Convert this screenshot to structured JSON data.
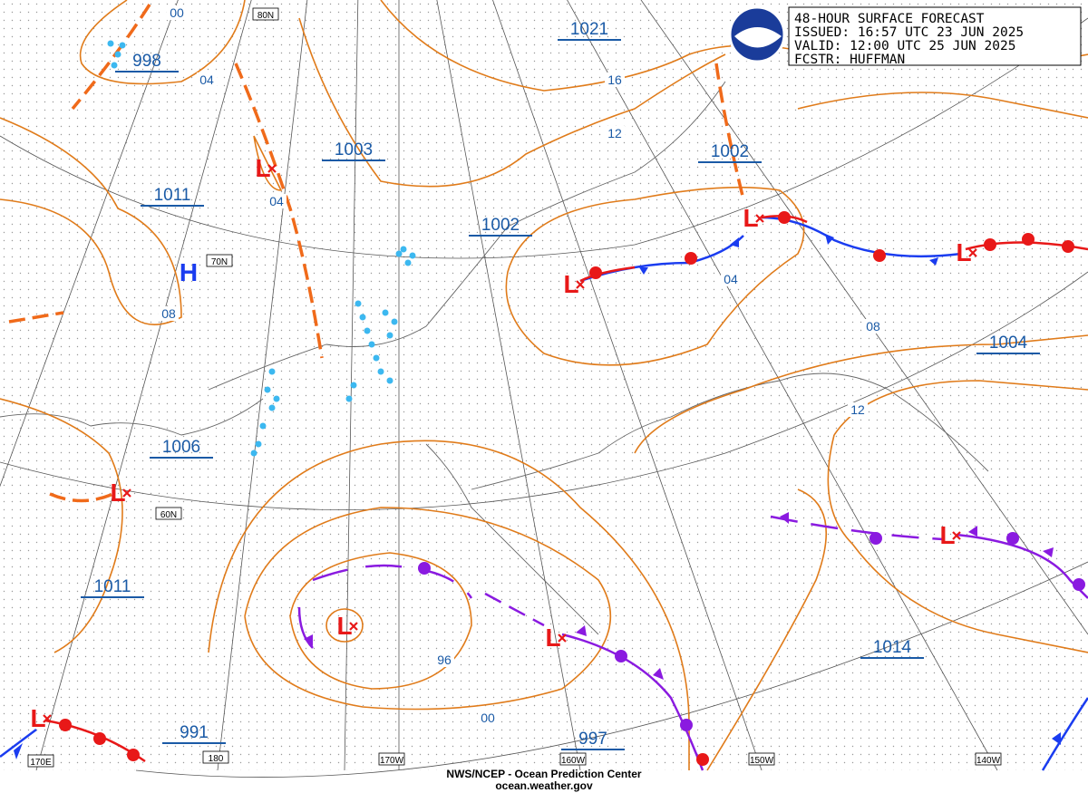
{
  "header": {
    "lines": [
      "48-HOUR SURFACE FORECAST",
      "ISSUED: 16:57 UTC 23 JUN 2025",
      "VALID:  12:00 UTC 25 JUN 2025",
      "FCSTR: HUFFMAN"
    ]
  },
  "footer": {
    "agency": "NWS/NCEP - Ocean Prediction Center",
    "website": "ocean.weather.gov"
  },
  "grid_labels": [
    "80N",
    "70N",
    "60N",
    "170E",
    "180",
    "170W",
    "160W",
    "150W",
    "140W"
  ],
  "pressure_labels": [
    "998",
    "1021",
    "1003",
    "1011",
    "1002",
    "1002",
    "1004",
    "1006",
    "1011",
    "991",
    "997",
    "1014"
  ],
  "isobar_labels": [
    "00",
    "04",
    "16",
    "12",
    "04",
    "08",
    "04",
    "08",
    "12",
    "96",
    "00"
  ],
  "highs": [
    "H"
  ],
  "lows": [
    "L",
    "L",
    "L",
    "L",
    "L",
    "L",
    "L",
    "L",
    "L"
  ]
}
